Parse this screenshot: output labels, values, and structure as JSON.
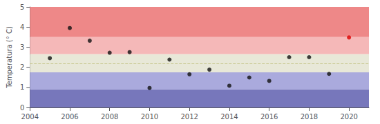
{
  "chart_data": {
    "type": "scatter",
    "ylabel": "Temperatura (° C)",
    "x": [
      2005,
      2006,
      2007,
      2008,
      2009,
      2010,
      2011,
      2012,
      2013,
      2014,
      2015,
      2016,
      2017,
      2018,
      2019,
      2020
    ],
    "values": [
      2.45,
      3.95,
      3.32,
      2.72,
      2.75,
      0.97,
      2.38,
      1.65,
      1.88,
      1.08,
      1.49,
      1.32,
      2.5,
      2.5,
      1.67,
      3.48
    ],
    "colors": [
      "#111111",
      "#111111",
      "#111111",
      "#111111",
      "#111111",
      "#111111",
      "#111111",
      "#111111",
      "#111111",
      "#111111",
      "#111111",
      "#111111",
      "#111111",
      "#111111",
      "#111111",
      "#dd0000"
    ],
    "xlim": [
      2004,
      2021
    ],
    "ylim": [
      0,
      5
    ],
    "xticks": [
      2004,
      2006,
      2008,
      2010,
      2012,
      2014,
      2016,
      2018,
      2020
    ],
    "yticks": [
      0,
      1,
      2,
      3,
      4,
      5
    ],
    "grid": false,
    "bands": [
      {
        "ymin": 0.0,
        "ymax": 0.9,
        "color": "#7777bb"
      },
      {
        "ymin": 0.9,
        "ymax": 1.75,
        "color": "#aaaadd"
      },
      {
        "ymin": 1.75,
        "ymax": 2.65,
        "color": "#e8e8d8"
      },
      {
        "ymin": 2.65,
        "ymax": 3.5,
        "color": "#f5b8b8"
      },
      {
        "ymin": 3.5,
        "ymax": 5.0,
        "color": "#ee8888"
      }
    ],
    "reference_line": {
      "y": 2.2,
      "color": "#c8c890",
      "line_style": "dashed"
    }
  }
}
